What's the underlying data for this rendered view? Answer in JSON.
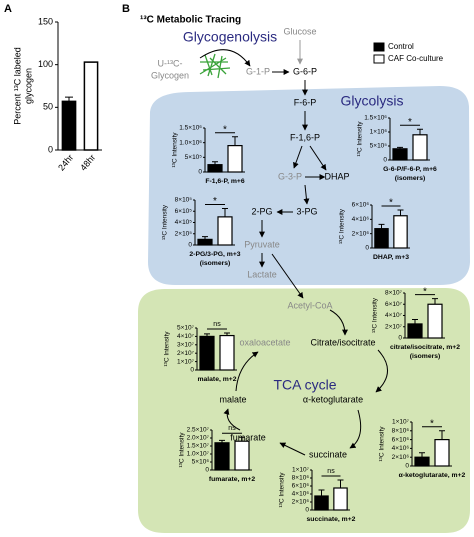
{
  "labels": {
    "panel_a": "A",
    "panel_b": "B",
    "title": "¹³C Metabolic Tracing"
  },
  "legend": [
    {
      "name": "Control",
      "color": "#000000"
    },
    {
      "name": "CAF Co-culture",
      "color": "#ffffff"
    }
  ],
  "nodes": [
    {
      "label": "Glycogenolysis"
    },
    {
      "label": "Glucose"
    },
    {
      "label": "U-¹³C-"
    },
    {
      "label": "Glycogen"
    },
    {
      "label": "G-1-P"
    },
    {
      "label": "G-6-P"
    },
    {
      "label": "F-6-P"
    },
    {
      "label": "Glycolysis"
    },
    {
      "label": "F-1,6-P"
    },
    {
      "label": "G-3-P"
    },
    {
      "label": "DHAP"
    },
    {
      "label": "2-PG"
    },
    {
      "label": "3-PG"
    },
    {
      "label": "Pyruvate"
    },
    {
      "label": "Lactate"
    },
    {
      "label": "Acetyl-CoA"
    },
    {
      "label": "oxaloacetate"
    },
    {
      "label": "Citrate/isocitrate"
    },
    {
      "label": "TCA cycle"
    },
    {
      "label": "α-ketoglutarate"
    },
    {
      "label": "malate"
    },
    {
      "label": "fumarate"
    },
    {
      "label": "succinate"
    }
  ],
  "chart_data": [
    {
      "type": "bar",
      "ylabel_lines": [
        "Percent ¹³C labeled",
        "glycogen"
      ],
      "categories": [
        "24hr",
        "48hr"
      ],
      "values": [
        57,
        103
      ],
      "errors": [
        5,
        0
      ],
      "colors": [
        "#000000",
        "#ffffff"
      ],
      "ylim": [
        0,
        150
      ],
      "yticks": [
        0,
        50,
        100,
        150
      ]
    },
    {
      "type": "bar",
      "title": "F-1,6-P, m+6",
      "ylabel": "¹³C Intensity",
      "values": [
        250000,
        900000
      ],
      "errors": [
        100000,
        300000
      ],
      "significance": "*",
      "ylim": [
        0,
        1500000
      ],
      "yticks": [
        0,
        {
          "value": 500000,
          "label": "5×10⁵"
        },
        {
          "value": 1000000,
          "label": "1.0×10⁶"
        },
        {
          "value": 1500000,
          "label": "1.5×10⁶"
        }
      ]
    },
    {
      "type": "bar",
      "title": "G-6-P/F-6-P, m+6",
      "subtitle": "(isomers)",
      "ylabel": "¹³C Intensity",
      "values": [
        400000,
        900000
      ],
      "errors": [
        50000,
        200000
      ],
      "significance": "*",
      "ylim": [
        0,
        1500000
      ],
      "yticks": [
        0,
        {
          "value": 500000,
          "label": "5×10⁵"
        },
        {
          "value": 1000000,
          "label": "1×10⁶"
        },
        {
          "value": 1500000,
          "label": "1.5×10⁶"
        }
      ]
    },
    {
      "type": "bar",
      "title": "2-PG/3-PG, m+3",
      "subtitle": "(isomers)",
      "ylabel": "¹³C Intensity",
      "values": [
        100000,
        500000
      ],
      "errors": [
        50000,
        150000
      ],
      "significance": "*",
      "ylim": [
        0,
        800000
      ],
      "yticks": [
        0,
        {
          "value": 200000,
          "label": "2×10⁵"
        },
        {
          "value": 400000,
          "label": "4×10⁵"
        },
        {
          "value": 600000,
          "label": "6×10⁵"
        },
        {
          "value": 800000,
          "label": "8×10⁵"
        }
      ]
    },
    {
      "type": "bar",
      "title": "DHAP, m+3",
      "ylabel": "¹³C Intensity",
      "values": [
        2700000,
        4500000
      ],
      "errors": [
        600000,
        800000
      ],
      "significance": "*",
      "ylim": [
        0,
        6000000
      ],
      "yticks": [
        0,
        {
          "value": 2000000,
          "label": "2×10⁶"
        },
        {
          "value": 4000000,
          "label": "4×10⁶"
        },
        {
          "value": 6000000,
          "label": "6×10⁶"
        }
      ]
    },
    {
      "type": "bar",
      "title": "malate, m+2",
      "ylabel": "¹³C Intensity",
      "values": [
        40000000,
        41000000
      ],
      "errors": [
        3000000,
        3000000
      ],
      "significance": "ns",
      "ylim": [
        0,
        50000000
      ],
      "yticks": [
        0,
        {
          "value": 10000000,
          "label": "1×10⁷"
        },
        {
          "value": 20000000,
          "label": "2×10⁷"
        },
        {
          "value": 30000000,
          "label": "3×10⁷"
        },
        {
          "value": 40000000,
          "label": "4×10⁷"
        },
        {
          "value": 50000000,
          "label": "5×10⁷"
        }
      ]
    },
    {
      "type": "bar",
      "title": "citrate/isocitrate, m+2",
      "subtitle": "(isomers)",
      "ylabel": "¹³C Intensity",
      "values": [
        25000000,
        60000000
      ],
      "errors": [
        8000000,
        10000000
      ],
      "significance": "*",
      "ylim": [
        0,
        80000000
      ],
      "yticks": [
        0,
        {
          "value": 20000000,
          "label": "2×10⁷"
        },
        {
          "value": 40000000,
          "label": "4×10⁷"
        },
        {
          "value": 60000000,
          "label": "6×10⁷"
        },
        {
          "value": 80000000,
          "label": "8×10⁷"
        }
      ]
    },
    {
      "type": "bar",
      "title": "fumarate, m+2",
      "ylabel": "¹³C Intensity",
      "values": [
        17000000,
        18000000
      ],
      "errors": [
        1500000,
        2500000
      ],
      "significance": "ns",
      "ylim": [
        0,
        25000000
      ],
      "yticks": [
        0,
        {
          "value": 5000000,
          "label": "5×10⁶"
        },
        {
          "value": 10000000,
          "label": "1.0×10⁷"
        },
        {
          "value": 15000000,
          "label": "1.5×10⁷"
        },
        {
          "value": 20000000,
          "label": "2.0×10⁷"
        },
        {
          "value": 25000000,
          "label": "2.5×10⁷"
        }
      ]
    },
    {
      "type": "bar",
      "title": "α-ketoglutarate, m+2",
      "ylabel": "¹³C Intensity",
      "values": [
        2000000,
        6000000
      ],
      "errors": [
        1000000,
        2000000
      ],
      "significance": "*",
      "ylim": [
        0,
        10000000
      ],
      "yticks": [
        0,
        {
          "value": 2000000,
          "label": "2×10⁶"
        },
        {
          "value": 4000000,
          "label": "4×10⁶"
        },
        {
          "value": 6000000,
          "label": "6×10⁶"
        },
        {
          "value": 8000000,
          "label": "8×10⁶"
        },
        {
          "value": 10000000,
          "label": "1×10⁷"
        }
      ]
    },
    {
      "type": "bar",
      "title": "succinate, m+2",
      "ylabel": "¹³C Intensity",
      "values": [
        3500000,
        5500000
      ],
      "errors": [
        1500000,
        2000000
      ],
      "significance": "ns",
      "ylim": [
        0,
        10000000
      ],
      "yticks": [
        0,
        {
          "value": 2000000,
          "label": "2×10⁶"
        },
        {
          "value": 4000000,
          "label": "4×10⁶"
        },
        {
          "value": 6000000,
          "label": "6×10⁶"
        },
        {
          "value": 8000000,
          "label": "8×10⁶"
        },
        {
          "value": 10000000,
          "label": "1×10⁷"
        }
      ]
    }
  ]
}
